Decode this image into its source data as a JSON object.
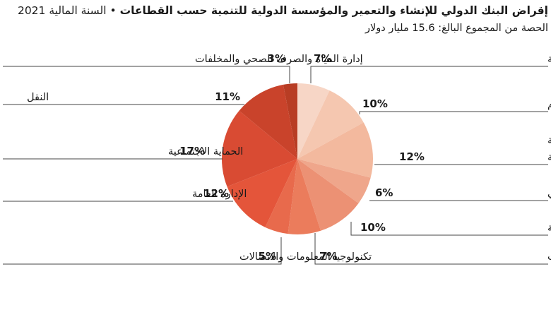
{
  "header": {
    "title_bold": "إقراض البنك الدولي للإنشاء والتعمير والمؤسسة الدولية للتنمية حسب القطاعات",
    "separator": "•",
    "title_year": "السنة المالية 2021",
    "subtitle": "الحصة من المجموع البالغ: 15.6 مليار دولار"
  },
  "chart_data": {
    "type": "pie",
    "title": "إقراض البنك الدولي للإنشاء والتعمير والمؤسسة الدولية للتنمية حسب القطاعات • السنة المالية 2021",
    "subtitle": "الحصة من المجموع البالغ: 15.6 مليار دولار",
    "unit": "%",
    "total_label": "15.6 مليار دولار",
    "legend": "none",
    "slices": [
      {
        "label": "الزراعة والصيد  والحراجة",
        "label_lines": [
          "الزراعة والصيد  والحراجة"
        ],
        "value": 7,
        "value_label": "7%",
        "color": "#f7d6c6"
      },
      {
        "label": "التعليم",
        "label_lines": [
          "التعليم"
        ],
        "value": 10,
        "value_label": "10%",
        "color": "#f5c7b0"
      },
      {
        "label": "الطاقة والصناعات الاستخراجية",
        "label_lines": [
          "الطاقة",
          "والصناعات الاستخراجية"
        ],
        "value": 12,
        "value_label": "12%",
        "color": "#f3b99e"
      },
      {
        "label": "القطاع المالي",
        "label_lines": [
          "القطاع المالي"
        ],
        "value": 6,
        "value_label": "6%",
        "color": "#efa68b"
      },
      {
        "label": "الصحة",
        "label_lines": [
          "الصحة"
        ],
        "value": 10,
        "value_label": "10%",
        "color": "#ec9174"
      },
      {
        "label": "الصناعة والتجارة والخدمات",
        "label_lines": [
          "الصناعة والتجارة والخدمات"
        ],
        "value": 7,
        "value_label": "7%",
        "color": "#eb7c5c"
      },
      {
        "label": "تكنولوجيا المعلومات والاتصالات",
        "label_lines": [
          "تكنولوجيا المعلومات والاتصالات"
        ],
        "value": 5,
        "value_label": "5%",
        "color": "#e86a4c"
      },
      {
        "label": "الإدارة العامة",
        "label_lines": [
          "الإدارة العامة"
        ],
        "value": 12,
        "value_label": "12%",
        "color": "#e4553a"
      },
      {
        "label": "الحماية الاجتماعية",
        "label_lines": [
          "الحماية الاجتماعية"
        ],
        "value": 17,
        "value_label": "17%",
        "color": "#d94b33"
      },
      {
        "label": "النقل",
        "label_lines": [
          "النقل"
        ],
        "value": 11,
        "value_label": "11%",
        "color": "#c9432b"
      },
      {
        "label": "إدارة المياه والصرف الصحي والمخلفات",
        "label_lines": [
          "إدارة المياه والصرف الصحي والمخلفات"
        ],
        "value": 3,
        "value_label": "3%",
        "color": "#b83d24"
      }
    ]
  }
}
